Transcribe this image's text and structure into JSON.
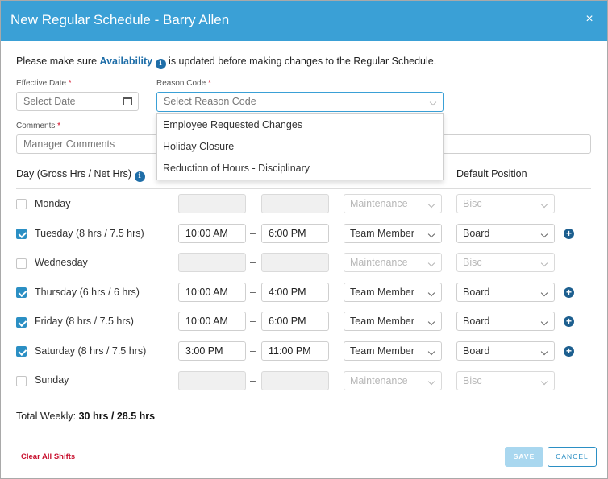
{
  "header": {
    "title": "New Regular Schedule - Barry Allen",
    "close": "×"
  },
  "notice": {
    "before": "Please make sure ",
    "link": "Availability",
    "info": "i",
    "after": " is updated before making changes to the Regular Schedule."
  },
  "effective_date": {
    "label": "Effective Date",
    "required": "*",
    "placeholder": "Select Date"
  },
  "reason_code": {
    "label": "Reason Code",
    "required": "*",
    "placeholder": "Select Reason Code",
    "options": [
      "Employee Requested Changes",
      "Holiday Closure",
      "Reduction of Hours - Disciplinary"
    ]
  },
  "comments": {
    "label": "Comments",
    "required": "*",
    "placeholder": "Manager Comments"
  },
  "columns": {
    "day": "Day (Gross Hrs / Net Hrs)",
    "info": "i",
    "position": "Default Position"
  },
  "days": [
    {
      "label": "Monday",
      "checked": false,
      "start": "",
      "end": "",
      "role": "Maintenance",
      "position": "Bisc"
    },
    {
      "label": "Tuesday (8 hrs / 7.5 hrs)",
      "checked": true,
      "start": "10:00 AM",
      "end": "6:00 PM",
      "role": "Team Member",
      "position": "Board"
    },
    {
      "label": "Wednesday",
      "checked": false,
      "start": "",
      "end": "",
      "role": "Maintenance",
      "position": "Bisc"
    },
    {
      "label": "Thursday (6 hrs / 6 hrs)",
      "checked": true,
      "start": "10:00 AM",
      "end": "4:00 PM",
      "role": "Team Member",
      "position": "Board"
    },
    {
      "label": "Friday (8 hrs / 7.5 hrs)",
      "checked": true,
      "start": "10:00 AM",
      "end": "6:00 PM",
      "role": "Team Member",
      "position": "Board"
    },
    {
      "label": "Saturday (8 hrs / 7.5 hrs)",
      "checked": true,
      "start": "3:00 PM",
      "end": "11:00 PM",
      "role": "Team Member",
      "position": "Board"
    },
    {
      "label": "Sunday",
      "checked": false,
      "start": "",
      "end": "",
      "role": "Maintenance",
      "position": "Bisc"
    }
  ],
  "dash": "–",
  "plus": "+",
  "total": {
    "label": "Total Weekly: ",
    "value": "30 hrs / 28.5 hrs"
  },
  "footer": {
    "clear": "Clear All Shifts",
    "save": "SAVE",
    "cancel": "CANCEL"
  }
}
